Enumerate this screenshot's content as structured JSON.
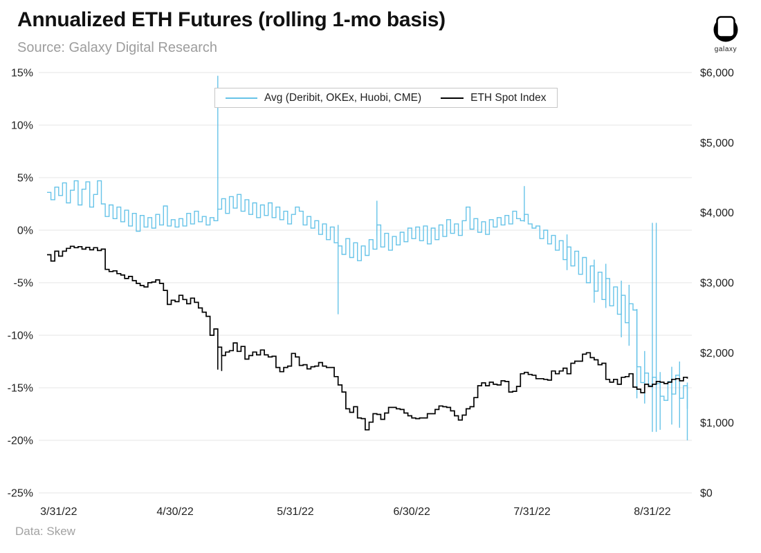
{
  "header": {
    "title": "Annualized ETH Futures (rolling 1-mo basis)",
    "subtitle": "Source: Galaxy Digital Research"
  },
  "footer": {
    "label": "Data: Skew"
  },
  "logo": {
    "text": "galaxy"
  },
  "chart_data": {
    "type": "line",
    "title": "Annualized ETH Futures (rolling 1-mo basis)",
    "subtitle": "Source: Galaxy Digital Research",
    "footnote": "Data: Skew",
    "grid": true,
    "legend_position": "top-center",
    "colors": {
      "basis_line": "#66c3e8",
      "spot_line": "#000000",
      "gridline": "#e4e4e4",
      "axis_text": "#222222",
      "muted_text": "#9d9d9d"
    },
    "x_axis": {
      "start_date": "3/28/22",
      "end_date": "9/9/22",
      "tick_labels": [
        "3/31/22",
        "4/30/22",
        "5/31/22",
        "6/30/22",
        "7/31/22",
        "8/31/22"
      ],
      "tick_day_index": [
        3,
        33,
        64,
        94,
        125,
        156
      ]
    },
    "left_axis": {
      "unit": "%",
      "range": [
        -25,
        15
      ],
      "ticks": [
        15,
        10,
        5,
        0,
        -5,
        -10,
        -15,
        -20,
        -25
      ],
      "tick_labels": [
        "15%",
        "10%",
        "5%",
        "0%",
        "-5%",
        "-10%",
        "-15%",
        "-20%",
        "-25%"
      ]
    },
    "right_axis": {
      "unit": "USD",
      "range": [
        0,
        6000
      ],
      "ticks": [
        6000,
        5000,
        4000,
        3000,
        2000,
        1000,
        0
      ],
      "tick_labels": [
        "$6,000",
        "$5,000",
        "$4,000",
        "$3,000",
        "$2,000",
        "$1,000",
        "$0"
      ]
    },
    "series": [
      {
        "name": "Avg (Deribit, OKEx, Huobi, CME)",
        "axis": "left",
        "unit": "%",
        "color": "#66c3e8",
        "values": [
          3.6,
          2.9,
          4.1,
          3.3,
          4.5,
          2.6,
          3.8,
          4.7,
          2.4,
          3.9,
          4.6,
          2.2,
          3.4,
          4.7,
          2.5,
          1.3,
          2.4,
          1.1,
          2.2,
          0.8,
          1.9,
          0.4,
          1.6,
          -0.1,
          1.4,
          0.3,
          1.2,
          0.2,
          1.5,
          0.5,
          2.3,
          0.4,
          1.0,
          0.3,
          1.1,
          0.4,
          1.6,
          0.6,
          1.8,
          0.8,
          1.3,
          0.5,
          1.2,
          0.9,
          2.0,
          3.0,
          1.6,
          3.2,
          2.1,
          3.4,
          1.8,
          2.9,
          1.5,
          2.6,
          1.2,
          2.4,
          1.4,
          2.6,
          1.2,
          2.2,
          1.0,
          1.8,
          0.6,
          1.5,
          2.2,
          1.8,
          0.5,
          1.3,
          0.2,
          0.9,
          -0.4,
          0.6,
          -0.9,
          0.3,
          -1.2,
          -1.5,
          -2.3,
          -0.8,
          -2.6,
          -1.2,
          -2.9,
          -1.5,
          -2.4,
          -0.9,
          -1.8,
          0.5,
          -1.6,
          -0.3,
          -1.9,
          -0.6,
          -1.4,
          -0.2,
          -1.1,
          0.2,
          -0.8,
          0.3,
          -1.0,
          0.4,
          -1.3,
          0.2,
          -0.9,
          0.5,
          -0.6,
          1.0,
          -0.3,
          0.6,
          -0.5,
          0.9,
          2.2,
          0.1,
          1.1,
          -0.2,
          0.8,
          -0.4,
          1.0,
          0.3,
          1.2,
          0.5,
          1.4,
          0.6,
          1.8,
          1.1,
          0.9,
          1.5,
          0.6,
          0.2,
          0.4,
          -0.8,
          0.0,
          -1.3,
          -0.5,
          -1.9,
          -1.0,
          -2.8,
          -1.6,
          -3.4,
          -2.0,
          -4.2,
          -2.6,
          -5.0,
          -3.4,
          -5.8,
          -4.0,
          -6.6,
          -4.6,
          -7.2,
          -5.4,
          -8.0,
          -6.2,
          -8.8,
          -7.0,
          -7.6,
          -13.0,
          -14.5,
          -13.6,
          -14.8,
          -14.0,
          -14.6,
          -15.8,
          -16.2,
          -14.4,
          -15.6,
          -13.8,
          -16.0,
          -14.8,
          -17.0
        ],
        "spikes": [
          {
            "day": 44,
            "from": 1.0,
            "to": 14.7
          },
          {
            "day": 75,
            "from": 0.5,
            "to": -8.0
          },
          {
            "day": 85,
            "from": -0.5,
            "to": 2.8
          },
          {
            "day": 123,
            "from": 0.8,
            "to": 4.2
          },
          {
            "day": 134,
            "from": -0.4,
            "to": -3.8
          },
          {
            "day": 141,
            "from": -2.8,
            "to": -6.9
          },
          {
            "day": 144,
            "from": -3.2,
            "to": -7.4
          },
          {
            "day": 148,
            "from": -4.8,
            "to": -10.2
          },
          {
            "day": 150,
            "from": -5.2,
            "to": -11.0
          },
          {
            "day": 152,
            "from": -7.5,
            "to": -16.0
          },
          {
            "day": 154,
            "from": -11.5,
            "to": -16.5
          },
          {
            "day": 156,
            "from": 0.7,
            "to": -19.2
          },
          {
            "day": 157,
            "from": 0.7,
            "to": -19.2
          },
          {
            "day": 158,
            "from": -13.5,
            "to": -19.0
          },
          {
            "day": 161,
            "from": -13.0,
            "to": -18.5
          },
          {
            "day": 163,
            "from": -12.5,
            "to": -18.8
          },
          {
            "day": 165,
            "from": -14.5,
            "to": -20.0
          }
        ]
      },
      {
        "name": "ETH Spot Index",
        "axis": "right",
        "unit": "USD",
        "color": "#000000",
        "values": [
          3400,
          3310,
          3450,
          3380,
          3450,
          3490,
          3520,
          3500,
          3515,
          3480,
          3505,
          3470,
          3500,
          3460,
          3480,
          3190,
          3160,
          3170,
          3130,
          3110,
          3060,
          3090,
          3030,
          2990,
          2960,
          2940,
          3000,
          3010,
          3040,
          2990,
          2890,
          2690,
          2750,
          2730,
          2820,
          2760,
          2700,
          2780,
          2720,
          2640,
          2580,
          2520,
          2250,
          2340,
          2080,
          1960,
          2010,
          2030,
          2140,
          2020,
          2090,
          1910,
          1960,
          2010,
          1970,
          2040,
          1970,
          1940,
          1950,
          1790,
          1730,
          1790,
          1810,
          1990,
          1940,
          1820,
          1830,
          1770,
          1800,
          1810,
          1860,
          1810,
          1790,
          1790,
          1660,
          1540,
          1440,
          1200,
          1150,
          1230,
          1070,
          1060,
          900,
          1010,
          1130,
          1120,
          1050,
          1140,
          1220,
          1220,
          1200,
          1190,
          1140,
          1100,
          1070,
          1060,
          1070,
          1070,
          1130,
          1130,
          1190,
          1240,
          1230,
          1220,
          1170,
          1100,
          1040,
          1110,
          1200,
          1230,
          1360,
          1530,
          1570,
          1530,
          1580,
          1550,
          1540,
          1600,
          1590,
          1440,
          1450,
          1520,
          1700,
          1720,
          1690,
          1680,
          1630,
          1630,
          1620,
          1610,
          1740,
          1700,
          1740,
          1780,
          1700,
          1850,
          1880,
          1880,
          1980,
          2000,
          1930,
          1900,
          1830,
          1850,
          1620,
          1580,
          1620,
          1550,
          1650,
          1660,
          1700,
          1510,
          1480,
          1430,
          1550,
          1520,
          1550,
          1590,
          1580,
          1560,
          1580,
          1620,
          1630,
          1600,
          1650,
          1630
        ],
        "spikes": [
          {
            "day": 44,
            "from": 2080,
            "to": 1760
          },
          {
            "day": 45,
            "from": 1960,
            "to": 1740
          }
        ]
      }
    ]
  }
}
